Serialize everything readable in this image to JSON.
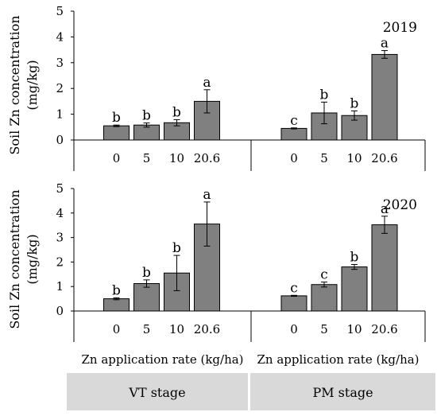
{
  "ylabel": "Soil Zn concentration\n(mg/kg)",
  "xlabel": "Zn application rate (kg/ha)",
  "stages": [
    "VT stage",
    "PM stage"
  ],
  "colors": {
    "bar": "#808080",
    "bar_edge": "#000000",
    "stage_box": "#d9d9d9",
    "axis": "#000000"
  },
  "chart_data": [
    {
      "type": "bar",
      "title": "2019",
      "ylim": [
        0,
        5
      ],
      "yticks": [
        0,
        1,
        2,
        3,
        4,
        5
      ],
      "groups": [
        {
          "stage": "VT stage",
          "categories": [
            "0",
            "5",
            "10",
            "20.6"
          ],
          "values": [
            0.55,
            0.58,
            0.67,
            1.5
          ],
          "errors": [
            0.03,
            0.08,
            0.12,
            0.45
          ],
          "letters": [
            "b",
            "b",
            "b",
            "a"
          ]
        },
        {
          "stage": "PM stage",
          "categories": [
            "0",
            "5",
            "10",
            "20.6"
          ],
          "values": [
            0.45,
            1.05,
            0.95,
            3.32
          ],
          "errors": [
            0.02,
            0.42,
            0.18,
            0.15
          ],
          "letters": [
            "c",
            "b",
            "b",
            "a"
          ]
        }
      ]
    },
    {
      "type": "bar",
      "title": "2020",
      "ylim": [
        0,
        5
      ],
      "yticks": [
        0,
        1,
        2,
        3,
        4,
        5
      ],
      "groups": [
        {
          "stage": "VT stage",
          "categories": [
            "0",
            "5",
            "10",
            "20.6"
          ],
          "values": [
            0.5,
            1.12,
            1.55,
            3.55
          ],
          "errors": [
            0.04,
            0.15,
            0.72,
            0.9
          ],
          "letters": [
            "b",
            "b",
            "b",
            "a"
          ]
        },
        {
          "stage": "PM stage",
          "categories": [
            "0",
            "5",
            "10",
            "20.6"
          ],
          "values": [
            0.62,
            1.08,
            1.8,
            3.52
          ],
          "errors": [
            0.02,
            0.1,
            0.1,
            0.35
          ],
          "letters": [
            "c",
            "c",
            "b",
            "a"
          ]
        }
      ]
    }
  ]
}
